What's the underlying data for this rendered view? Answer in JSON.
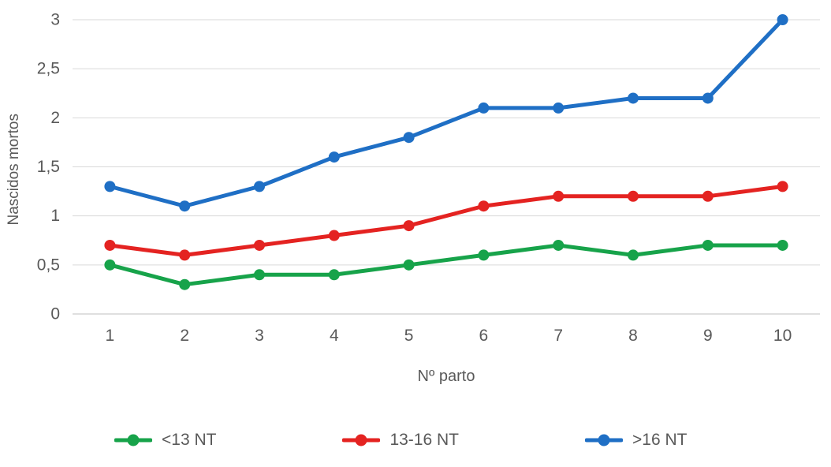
{
  "chart_data": {
    "type": "line",
    "title": "",
    "xlabel": "Nº parto",
    "ylabel": "Nascidos mortos",
    "x": [
      1,
      2,
      3,
      4,
      5,
      6,
      7,
      8,
      9,
      10
    ],
    "xtick_labels": [
      "1",
      "2",
      "3",
      "4",
      "5",
      "6",
      "7",
      "8",
      "9",
      "10"
    ],
    "yticks": [
      0,
      0.5,
      1,
      1.5,
      2,
      2.5,
      3
    ],
    "ytick_labels": [
      "0",
      "0,5",
      "1",
      "1,5",
      "2",
      "2,5",
      "3"
    ],
    "ylim": [
      0,
      3
    ],
    "grid": "horizontal",
    "legend_position": "bottom",
    "series": [
      {
        "name": "<13 NT",
        "color": "#17a34a",
        "values": [
          0.5,
          0.3,
          0.4,
          0.4,
          0.5,
          0.6,
          0.7,
          0.6,
          0.7,
          0.7
        ]
      },
      {
        "name": "13-16 NT",
        "color": "#e42321",
        "values": [
          0.7,
          0.6,
          0.7,
          0.8,
          0.9,
          1.1,
          1.2,
          1.2,
          1.2,
          1.3
        ]
      },
      {
        "name": ">16 NT",
        "color": "#1f6fc5",
        "values": [
          1.3,
          1.1,
          1.3,
          1.6,
          1.8,
          2.1,
          2.1,
          2.2,
          2.2,
          3.0
        ]
      }
    ]
  },
  "style": {
    "text_color": "#595959",
    "grid_color": "#d9d9d9",
    "axis_line_color": "#bfbfbf"
  }
}
